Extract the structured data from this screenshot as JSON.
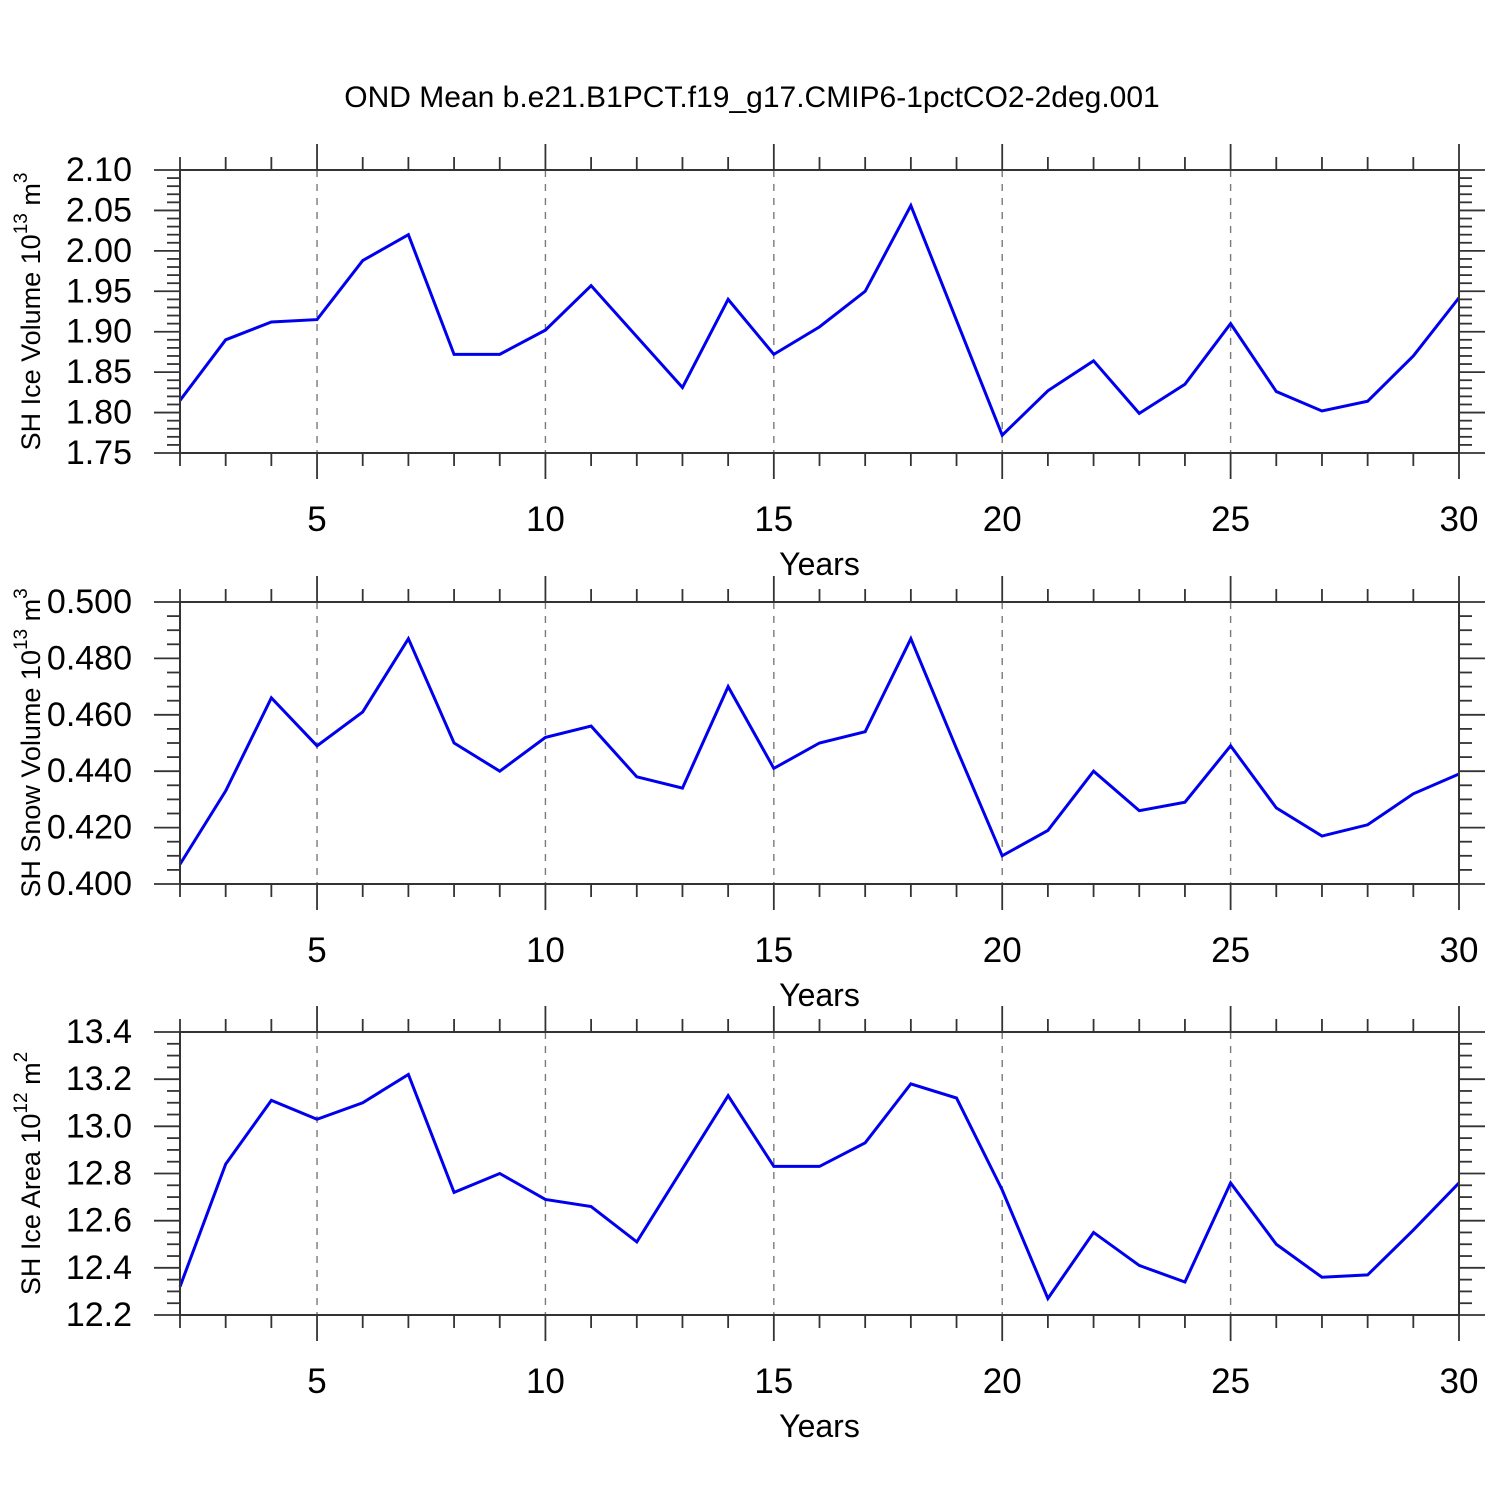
{
  "page": {
    "title": "OND Mean b.e21.B1PCT.f19_g17.CMIP6-1pctCO2-2deg.001"
  },
  "colors": {
    "line": "#0000ee",
    "grid": "#7a7a7a",
    "frame": "#333333",
    "text": "#000000",
    "background": "#ffffff"
  },
  "x_axis": {
    "label": "Years",
    "lim": [
      2,
      30
    ],
    "major_ticks": [
      5,
      10,
      15,
      20,
      25,
      30
    ],
    "major_labels": [
      "5",
      "10",
      "15",
      "20",
      "25",
      "30"
    ],
    "minor_step": 1,
    "grid_at": [
      5,
      10,
      15,
      20,
      25
    ]
  },
  "chart_data": [
    {
      "id": "sh-ice-volume",
      "type": "line",
      "ylabel_plain": "SH Ice Volume 10^13 m^3",
      "ylabel_parts": [
        {
          "text": "SH Ice Volume 10",
          "sup": false
        },
        {
          "text": "13",
          "sup": true
        },
        {
          "text": " m",
          "sup": false
        },
        {
          "text": "3",
          "sup": true
        }
      ],
      "xlabel": "Years",
      "ylim": [
        1.75,
        2.1
      ],
      "ytick_values": [
        2.1,
        2.05,
        2.0,
        1.95,
        1.9,
        1.85,
        1.8,
        1.75
      ],
      "ytick_labels": [
        "2.10",
        "2.05",
        "2.00",
        "1.95",
        "1.90",
        "1.85",
        "1.80",
        "1.75"
      ],
      "y_minor_step": 0.01,
      "x": [
        2,
        3,
        4,
        5,
        6,
        7,
        8,
        9,
        10,
        11,
        12,
        13,
        14,
        15,
        16,
        17,
        18,
        19,
        20,
        21,
        22,
        23,
        24,
        25,
        26,
        27,
        28,
        29,
        30
      ],
      "values": [
        1.815,
        1.89,
        1.912,
        1.915,
        1.988,
        2.02,
        1.872,
        1.872,
        1.902,
        1.957,
        1.894,
        1.831,
        1.94,
        1.872,
        1.906,
        1.95,
        2.056,
        1.914,
        1.772,
        1.827,
        1.864,
        1.799,
        1.835,
        1.91,
        1.826,
        1.802,
        1.814,
        1.87,
        1.942
      ]
    },
    {
      "id": "sh-snow-volume",
      "type": "line",
      "ylabel_plain": "SH Snow Volume 10^13 m^3",
      "ylabel_parts": [
        {
          "text": "SH Snow Volume 10",
          "sup": false
        },
        {
          "text": "13",
          "sup": true
        },
        {
          "text": " m",
          "sup": false
        },
        {
          "text": "3",
          "sup": true
        }
      ],
      "xlabel": "Years",
      "ylim": [
        0.4,
        0.5
      ],
      "ytick_values": [
        0.5,
        0.48,
        0.46,
        0.44,
        0.42,
        0.4
      ],
      "ytick_labels": [
        "0.500",
        "0.480",
        "0.460",
        "0.440",
        "0.420",
        "0.400"
      ],
      "y_minor_step": 0.005,
      "x": [
        2,
        3,
        4,
        5,
        6,
        7,
        8,
        9,
        10,
        11,
        12,
        13,
        14,
        15,
        16,
        17,
        18,
        19,
        20,
        21,
        22,
        23,
        24,
        25,
        26,
        27,
        28,
        29,
        30
      ],
      "values": [
        0.407,
        0.433,
        0.466,
        0.449,
        0.461,
        0.487,
        0.45,
        0.44,
        0.452,
        0.456,
        0.438,
        0.434,
        0.47,
        0.441,
        0.45,
        0.454,
        0.487,
        0.448,
        0.41,
        0.419,
        0.44,
        0.426,
        0.429,
        0.449,
        0.427,
        0.417,
        0.421,
        0.432,
        0.439
      ]
    },
    {
      "id": "sh-ice-area",
      "type": "line",
      "ylabel_plain": "SH Ice Area 10^12 m^2",
      "ylabel_parts": [
        {
          "text": "SH Ice Area 10",
          "sup": false
        },
        {
          "text": "12",
          "sup": true
        },
        {
          "text": " m",
          "sup": false
        },
        {
          "text": "2",
          "sup": true
        }
      ],
      "xlabel": "Years",
      "ylim": [
        12.2,
        13.4
      ],
      "ytick_values": [
        13.4,
        13.2,
        13.0,
        12.8,
        12.6,
        12.4,
        12.2
      ],
      "ytick_labels": [
        "13.4",
        "13.2",
        "13.0",
        "12.8",
        "12.6",
        "12.4",
        "12.2"
      ],
      "y_minor_step": 0.05,
      "x": [
        2,
        3,
        4,
        5,
        6,
        7,
        8,
        9,
        10,
        11,
        12,
        13,
        14,
        15,
        16,
        17,
        18,
        19,
        20,
        21,
        22,
        23,
        24,
        25,
        26,
        27,
        28,
        29,
        30
      ],
      "values": [
        12.32,
        12.84,
        13.11,
        13.03,
        13.1,
        13.22,
        12.72,
        12.8,
        12.69,
        12.66,
        12.51,
        12.82,
        13.13,
        12.83,
        12.83,
        12.93,
        13.18,
        13.12,
        12.73,
        12.27,
        12.55,
        12.41,
        12.34,
        12.76,
        12.5,
        12.36,
        12.37,
        12.56,
        12.76
      ]
    }
  ]
}
